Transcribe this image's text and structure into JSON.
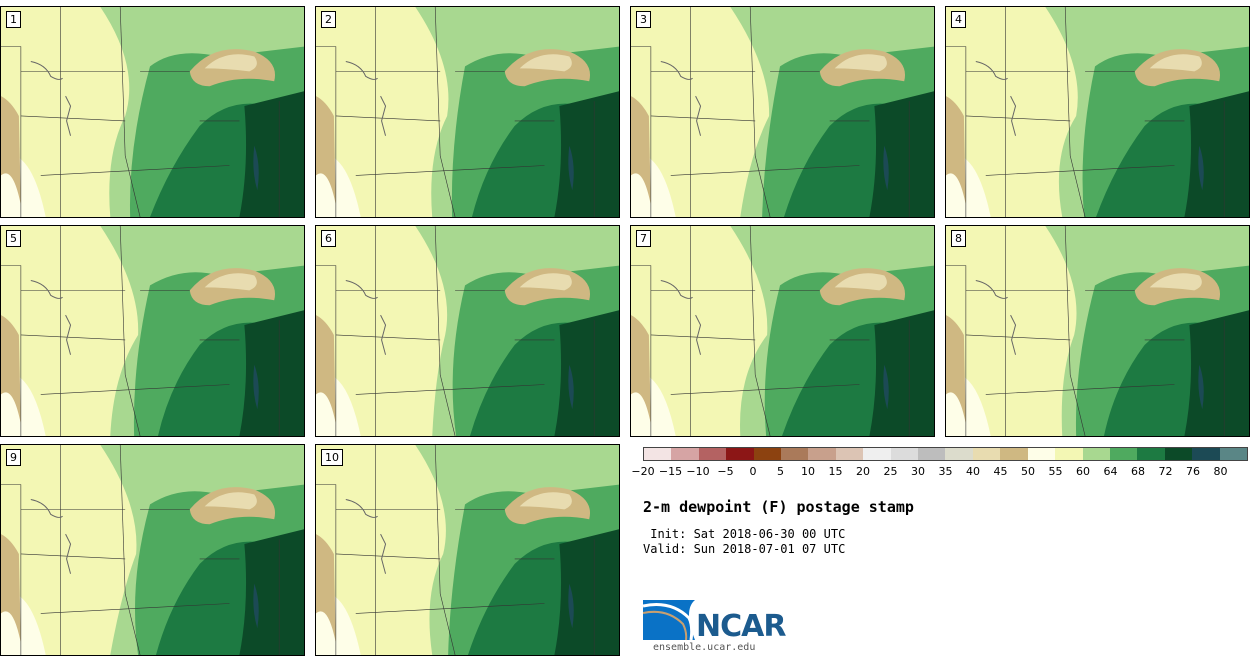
{
  "panels": [
    {
      "label": "1"
    },
    {
      "label": "2"
    },
    {
      "label": "3"
    },
    {
      "label": "4"
    },
    {
      "label": "5"
    },
    {
      "label": "6"
    },
    {
      "label": "7"
    },
    {
      "label": "8"
    },
    {
      "label": "9"
    },
    {
      "label": "10"
    }
  ],
  "colorbar": {
    "colors": [
      "#f3e4e4",
      "#d6a4a4",
      "#b46262",
      "#8c1616",
      "#8c4210",
      "#aa7a5a",
      "#c8a08c",
      "#dcc4b4",
      "#efefef",
      "#dcdcdc",
      "#bdbdbd",
      "#dcdccc",
      "#e8dcb0",
      "#cfb882",
      "#fefee8",
      "#f3f7b4",
      "#a8d890",
      "#4faa5f",
      "#1d7a42",
      "#0c4a28",
      "#1c4a55",
      "#5a8686"
    ],
    "tick_labels": [
      "−20",
      "−15",
      "−10",
      "−5",
      "0",
      "5",
      "10",
      "15",
      "20",
      "25",
      "30",
      "35",
      "40",
      "45",
      "50",
      "55",
      "60",
      "64",
      "68",
      "72",
      "76",
      "80"
    ]
  },
  "title": "2-m dewpoint (F) postage stamp",
  "init": " Init: Sat 2018-06-30 00 UTC",
  "valid": "Valid: Sun 2018-07-01 07 UTC",
  "logo": {
    "name": "NCAR",
    "colors": {
      "blue": "#0a72c6",
      "navy": "#1c5b8e"
    }
  },
  "website": "ensemble.ucar.edu"
}
